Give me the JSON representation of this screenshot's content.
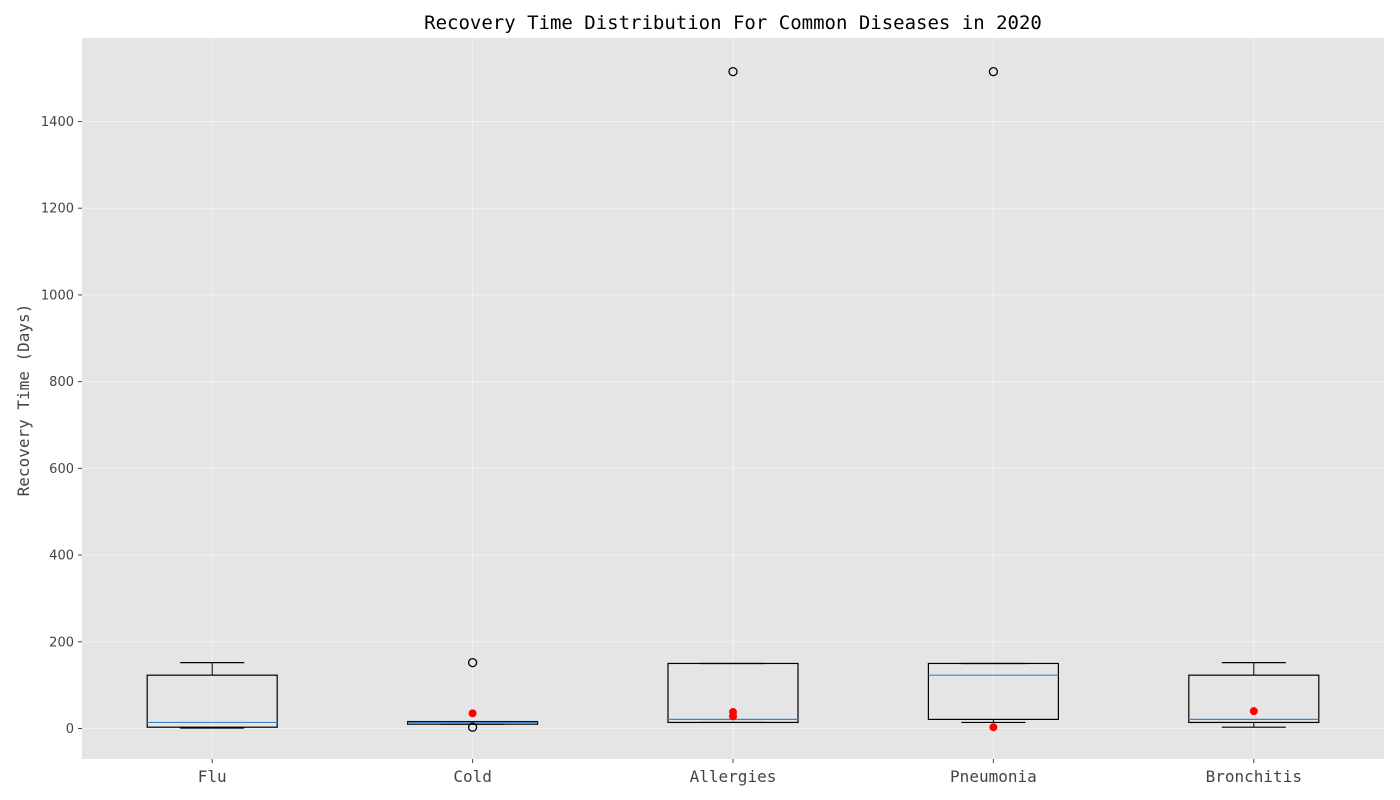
{
  "chart_data": {
    "type": "box",
    "title": "Recovery Time Distribution For Common Diseases in 2020",
    "xlabel": "",
    "ylabel": "Recovery Time (Days)",
    "ylim": [
      -70,
      1580
    ],
    "yticks": [
      0,
      200,
      400,
      600,
      800,
      1000,
      1200,
      1400
    ],
    "grid": true,
    "colors": {
      "background": "#e5e5e5",
      "grid": "#f2f2f2",
      "box": "#000000",
      "median": "#3a86c8",
      "mean_marker": "#ff0000",
      "tick_text": "#444444"
    },
    "categories": [
      "Flu",
      "Cold",
      "Allergies",
      "Pneumonia",
      "Bronchitis"
    ],
    "boxes": [
      {
        "label": "Flu",
        "whisker_low": 1,
        "q1": 3,
        "median": 14,
        "q3": 123,
        "whisker_high": 152,
        "outliers": [],
        "means": []
      },
      {
        "label": "Cold",
        "whisker_low": 10,
        "q1": 10,
        "median": 14,
        "q3": 16,
        "whisker_high": 16,
        "outliers": [
          152,
          3
        ],
        "means": [
          35
        ]
      },
      {
        "label": "Allergies",
        "whisker_low": 14,
        "q1": 14,
        "median": 21,
        "q3": 150,
        "whisker_high": 150,
        "outliers": [
          1515
        ],
        "means": [
          38,
          28
        ]
      },
      {
        "label": "Pneumonia",
        "whisker_low": 14,
        "q1": 21,
        "median": 123,
        "q3": 150,
        "whisker_high": 150,
        "outliers": [
          1515
        ],
        "means": [
          3
        ]
      },
      {
        "label": "Bronchitis",
        "whisker_low": 3,
        "q1": 14,
        "median": 21,
        "q3": 123,
        "whisker_high": 152,
        "outliers": [],
        "means": [
          40
        ]
      }
    ]
  }
}
